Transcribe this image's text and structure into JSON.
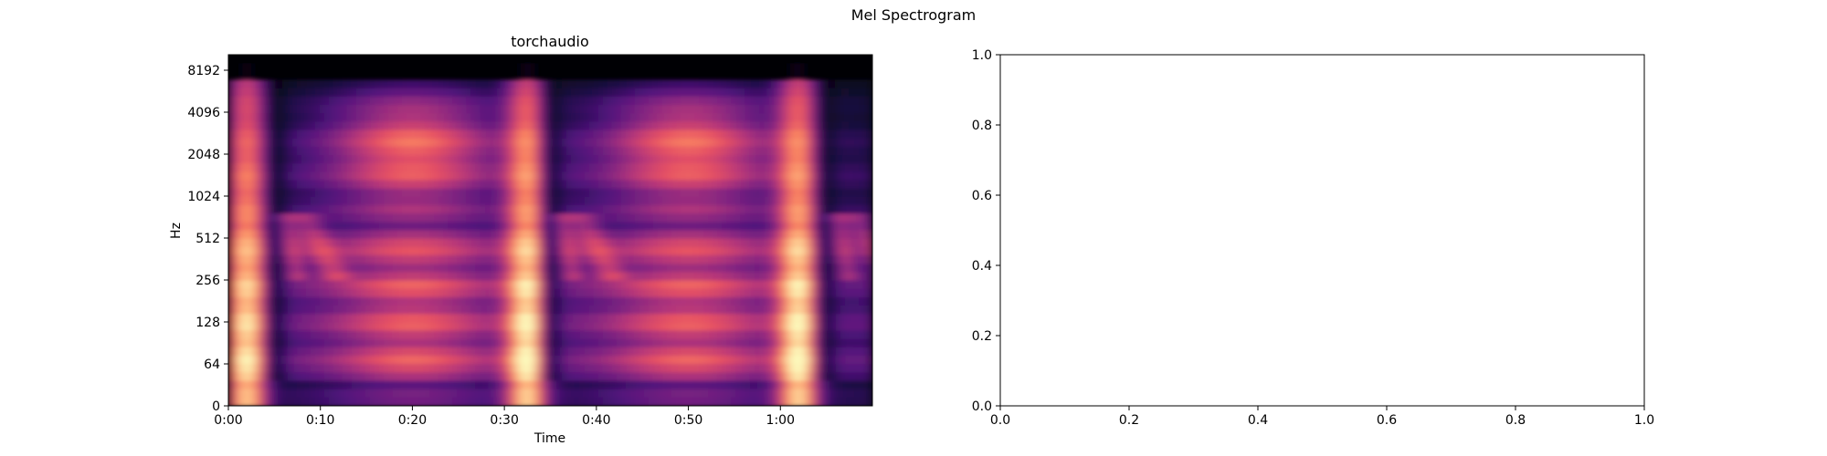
{
  "figure": {
    "suptitle": "Mel Spectrogram"
  },
  "colors": {
    "colormap": "magma"
  },
  "chart_data": [
    {
      "type": "heatmap",
      "title": "torchaudio",
      "xlabel": "Time",
      "ylabel": "Hz",
      "colormap": "magma",
      "xlim": [
        0,
        70
      ],
      "x_ticks": [
        0,
        10,
        20,
        30,
        40,
        50,
        60
      ],
      "x_tick_labels": [
        "0:00",
        "0:10",
        "0:20",
        "0:30",
        "0:40",
        "0:50",
        "1:00"
      ],
      "y_scale": "mel",
      "y_tick_labels": [
        "0",
        "64",
        "128",
        "256",
        "512",
        "1024",
        "2048",
        "4096",
        "8192"
      ],
      "grid": false
    },
    {
      "type": "line",
      "title": "",
      "xlabel": "",
      "ylabel": "",
      "xlim": [
        0,
        1
      ],
      "ylim": [
        0,
        1
      ],
      "x_tick_labels": [
        "0.0",
        "0.2",
        "0.4",
        "0.6",
        "0.8",
        "1.0"
      ],
      "y_tick_labels": [
        "0.0",
        "0.2",
        "0.4",
        "0.6",
        "0.8",
        "1.0"
      ],
      "series": [],
      "grid": false
    }
  ]
}
